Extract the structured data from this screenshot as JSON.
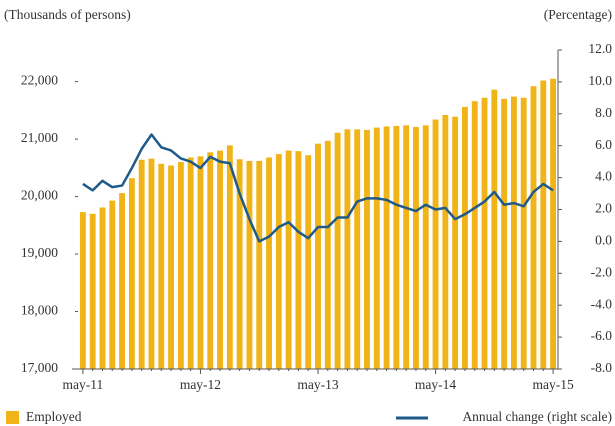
{
  "chart_data": {
    "type": "bar_line",
    "y_label": "(Thousands of persons)",
    "y2_label": "(Percentage)",
    "categories": [
      "may-11",
      null,
      null,
      null,
      null,
      null,
      null,
      null,
      null,
      null,
      null,
      null,
      "may-12",
      null,
      null,
      null,
      null,
      null,
      null,
      null,
      null,
      null,
      null,
      null,
      "may-13",
      null,
      null,
      null,
      null,
      null,
      null,
      null,
      null,
      null,
      null,
      null,
      "may-14",
      null,
      null,
      null,
      null,
      null,
      null,
      null,
      null,
      null,
      null,
      null,
      "may-15"
    ],
    "series": [
      {
        "name": "Employed",
        "color": "#f0b418",
        "kind": "bar",
        "axis": "y",
        "values": [
          19730,
          19700,
          19810,
          19930,
          20060,
          20320,
          20640,
          20660,
          20570,
          20540,
          20600,
          20680,
          20700,
          20770,
          20800,
          20890,
          20650,
          20620,
          20620,
          20680,
          20740,
          20800,
          20790,
          20720,
          20920,
          20970,
          21110,
          21170,
          21170,
          21160,
          21200,
          21220,
          21230,
          21240,
          21210,
          21240,
          21340,
          21420,
          21390,
          21560,
          21660,
          21720,
          21860,
          21700,
          21740,
          21720,
          21920,
          22020,
          22050
        ]
      },
      {
        "name": "Annual change (right scale)",
        "color": "#1f5a8a",
        "kind": "line",
        "axis": "y2",
        "values": [
          3.6,
          3.2,
          3.8,
          3.4,
          3.5,
          4.6,
          5.8,
          6.7,
          5.9,
          5.7,
          5.2,
          5.0,
          4.6,
          5.3,
          5.0,
          4.9,
          3.0,
          1.4,
          0.0,
          0.3,
          0.9,
          1.2,
          0.6,
          0.2,
          0.9,
          0.9,
          1.5,
          1.5,
          2.5,
          2.7,
          2.7,
          2.6,
          2.3,
          2.1,
          1.9,
          2.3,
          2.0,
          2.1,
          1.4,
          1.7,
          2.1,
          2.5,
          3.1,
          2.3,
          2.4,
          2.2,
          3.1,
          3.6,
          3.2
        ]
      }
    ],
    "ylim": [
      17000,
      22550
    ],
    "yticks": [
      {
        "value": 17000,
        "label": "17,000"
      },
      {
        "value": 18000,
        "label": "18,000"
      },
      {
        "value": 19000,
        "label": "19,000"
      },
      {
        "value": 20000,
        "label": "20,000"
      },
      {
        "value": 21000,
        "label": "21,000"
      },
      {
        "value": 22000,
        "label": "22,000"
      }
    ],
    "y2lim": [
      -8,
      12
    ],
    "y2ticks": [
      {
        "value": -8,
        "label": "-8.0"
      },
      {
        "value": -6,
        "label": "-6.0"
      },
      {
        "value": -4,
        "label": "-4.0"
      },
      {
        "value": -2,
        "label": "-2.0"
      },
      {
        "value": 0,
        "label": "0.0"
      },
      {
        "value": 2,
        "label": "2.0"
      },
      {
        "value": 4,
        "label": "4.0"
      },
      {
        "value": 6,
        "label": "6.0"
      },
      {
        "value": 8,
        "label": "8.0"
      },
      {
        "value": 10,
        "label": "10.0"
      },
      {
        "value": 12,
        "label": "12.0"
      }
    ]
  }
}
